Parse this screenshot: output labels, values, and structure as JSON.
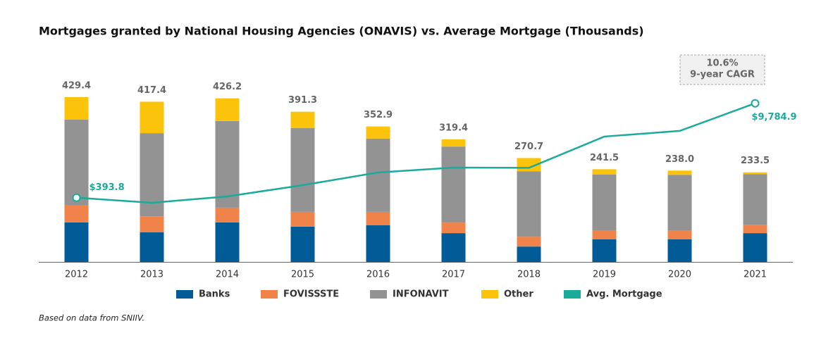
{
  "chart_data": {
    "type": "bar",
    "title": "Mortgages granted by National Housing Agencies (ONAVIS) vs. Average Mortgage (Thousands)",
    "categories": [
      "2012",
      "2013",
      "2014",
      "2015",
      "2016",
      "2017",
      "2018",
      "2019",
      "2020",
      "2021"
    ],
    "series": [
      {
        "name": "Banks",
        "color": "#005b96",
        "values": [
          103,
          77,
          103,
          92,
          95.4,
          75,
          40,
          58.7,
          58.7,
          75
        ]
      },
      {
        "name": "FOVISSSTE",
        "color": "#f0834a",
        "values": [
          44,
          42,
          38.5,
          38.5,
          35,
          27.5,
          25.7,
          23.8,
          23.8,
          22
        ]
      },
      {
        "name": "INFONAVIT",
        "color": "#939393",
        "values": [
          224,
          216.5,
          225.7,
          218,
          191,
          198,
          170.6,
          145,
          144.5,
          132
        ]
      },
      {
        "name": "Other",
        "color": "#fcc30b",
        "values": [
          58.4,
          81.9,
          59,
          42.8,
          31.5,
          18.9,
          34.4,
          14,
          11,
          4.5
        ]
      },
      {
        "name": "Avg. Mortgage",
        "color": "#1aab9b",
        "axis": "y2",
        "values": [
          393.8,
          -113,
          518,
          1640,
          2901,
          3392,
          3360,
          6476,
          7037,
          9784.9
        ],
        "value_labels": [
          "$393.8",
          null,
          null,
          null,
          null,
          null,
          null,
          null,
          null,
          "$9,784.9"
        ]
      }
    ],
    "totals": [
      429.4,
      417.4,
      426.2,
      391.3,
      352.9,
      319.4,
      270.7,
      241.5,
      238.0,
      233.5
    ],
    "total_labels": [
      "429.4",
      "417.4",
      "426.2",
      "391.3",
      "352.9",
      "319.4",
      "270.7",
      "241.5",
      "238.0",
      "233.5"
    ],
    "ylim": [
      0,
      576
    ],
    "y2lim": [
      -6000,
      16000
    ],
    "annotation": {
      "value": "10.6%",
      "text": "9-year CAGR"
    },
    "note": "Based on data from SNIIV."
  }
}
